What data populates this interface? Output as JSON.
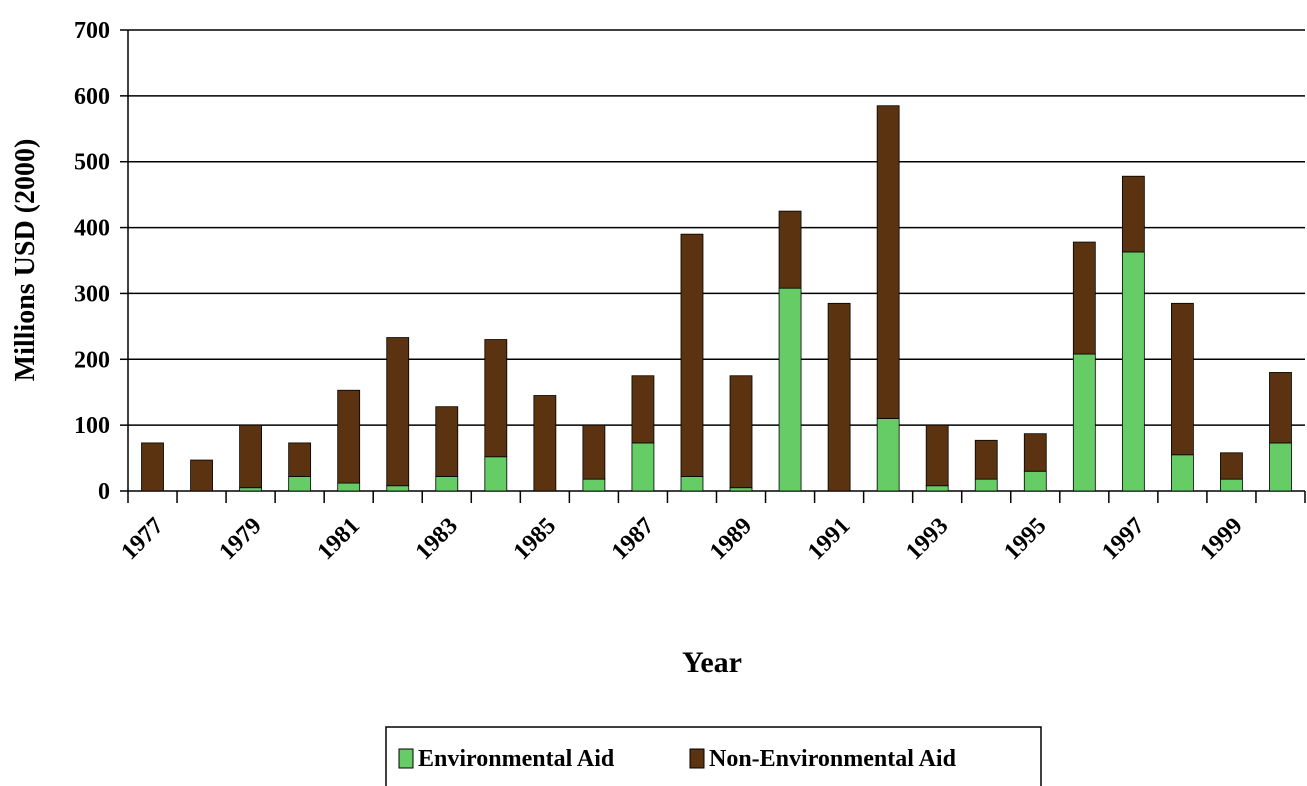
{
  "chart_data": {
    "type": "stacked_bar",
    "x_label": "Year",
    "y_label": "Millions USD (2000)",
    "categories": [
      "1977",
      null,
      "1979",
      null,
      "1981",
      null,
      "1983",
      null,
      "1985",
      null,
      "1987",
      null,
      "1989",
      null,
      "1991",
      null,
      "1993",
      null,
      "1995",
      null,
      "1997",
      null,
      "1999",
      null
    ],
    "series": [
      {
        "name": "Environmental Aid",
        "color": "#66cc66",
        "values": [
          0,
          0,
          5,
          22,
          12,
          8,
          22,
          52,
          0,
          18,
          73,
          22,
          5,
          308,
          0,
          110,
          8,
          18,
          30,
          208,
          363,
          55,
          18,
          73
        ]
      },
      {
        "name": "Non-Environmental Aid",
        "color": "#5c3310",
        "values": [
          73,
          47,
          95,
          51,
          141,
          225,
          106,
          178,
          145,
          82,
          102,
          368,
          170,
          117,
          285,
          475,
          92,
          59,
          57,
          170,
          115,
          230,
          40,
          107
        ]
      }
    ],
    "ylim": [
      0,
      700
    ],
    "yticks": [
      0,
      100,
      200,
      300,
      400,
      500,
      600,
      700
    ],
    "grid": true,
    "legend": "bottom"
  }
}
